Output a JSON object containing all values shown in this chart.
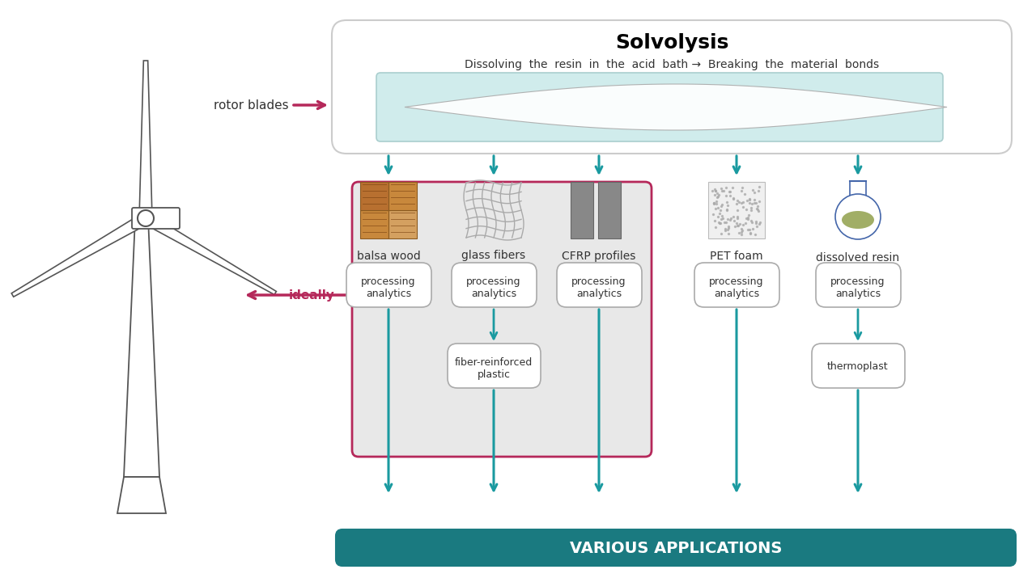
{
  "bg_color": "#ffffff",
  "arrow_color": "#1a9aa0",
  "crimson": "#b5285a",
  "gray_box": "#e8e8e8",
  "dark_teal": "#1a7a80",
  "box_stroke": "#aaaaaa",
  "pink_box_stroke": "#b5285a",
  "title": "Solvolysis",
  "subtitle": "Dissolving  the  resin  in  the  acid  bath →  Breaking  the  material  bonds",
  "rotor_label": "rotor blades",
  "ideally_label": "ideally",
  "materials": [
    "balsa wood",
    "glass fibers",
    "CFRP profiles",
    "PET foam",
    "dissolved resin"
  ],
  "various_applications": "VARIOUS APPLICATIONS"
}
